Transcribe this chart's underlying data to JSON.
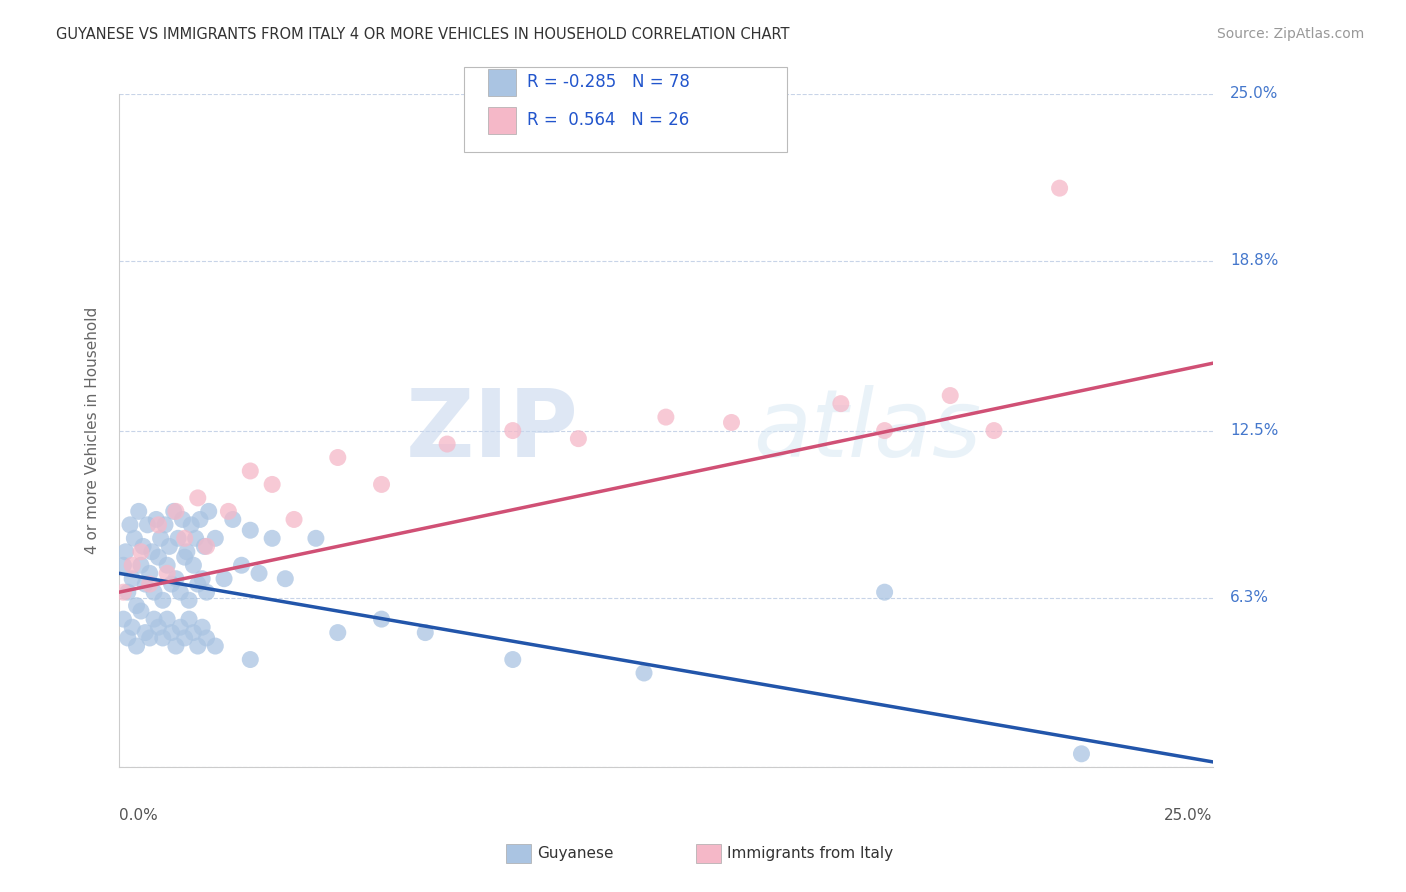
{
  "title": "GUYANESE VS IMMIGRANTS FROM ITALY 4 OR MORE VEHICLES IN HOUSEHOLD CORRELATION CHART",
  "source": "Source: ZipAtlas.com",
  "ylabel": "4 or more Vehicles in Household",
  "yticks": [
    0.0,
    6.3,
    12.5,
    18.8,
    25.0
  ],
  "ytick_labels": [
    "",
    "6.3%",
    "12.5%",
    "18.8%",
    "25.0%"
  ],
  "xlim": [
    0.0,
    25.0
  ],
  "ylim": [
    0.0,
    25.0
  ],
  "watermark_zip": "ZIP",
  "watermark_atlas": "atlas",
  "legend_blue_label": "Guyanese",
  "legend_pink_label": "Immigrants from Italy",
  "R_blue": -0.285,
  "N_blue": 78,
  "R_pink": 0.564,
  "N_pink": 26,
  "blue_color": "#aac4e2",
  "pink_color": "#f5b8c8",
  "blue_line_color": "#2255aa",
  "pink_line_color": "#d05075",
  "background_color": "#ffffff",
  "grid_color": "#c8d4e8",
  "blue_line_start_y": 7.2,
  "blue_line_end_y": 0.2,
  "pink_line_start_y": 6.5,
  "pink_line_end_y": 15.0,
  "blue_dots": [
    [
      0.1,
      7.5
    ],
    [
      0.15,
      8.0
    ],
    [
      0.2,
      6.5
    ],
    [
      0.25,
      9.0
    ],
    [
      0.3,
      7.0
    ],
    [
      0.35,
      8.5
    ],
    [
      0.4,
      6.0
    ],
    [
      0.45,
      9.5
    ],
    [
      0.5,
      7.5
    ],
    [
      0.55,
      8.2
    ],
    [
      0.6,
      6.8
    ],
    [
      0.65,
      9.0
    ],
    [
      0.7,
      7.2
    ],
    [
      0.75,
      8.0
    ],
    [
      0.8,
      6.5
    ],
    [
      0.85,
      9.2
    ],
    [
      0.9,
      7.8
    ],
    [
      0.95,
      8.5
    ],
    [
      1.0,
      6.2
    ],
    [
      1.05,
      9.0
    ],
    [
      1.1,
      7.5
    ],
    [
      1.15,
      8.2
    ],
    [
      1.2,
      6.8
    ],
    [
      1.25,
      9.5
    ],
    [
      1.3,
      7.0
    ],
    [
      1.35,
      8.5
    ],
    [
      1.4,
      6.5
    ],
    [
      1.45,
      9.2
    ],
    [
      1.5,
      7.8
    ],
    [
      1.55,
      8.0
    ],
    [
      1.6,
      6.2
    ],
    [
      1.65,
      9.0
    ],
    [
      1.7,
      7.5
    ],
    [
      1.75,
      8.5
    ],
    [
      1.8,
      6.8
    ],
    [
      1.85,
      9.2
    ],
    [
      1.9,
      7.0
    ],
    [
      1.95,
      8.2
    ],
    [
      2.0,
      6.5
    ],
    [
      2.05,
      9.5
    ],
    [
      0.1,
      5.5
    ],
    [
      0.2,
      4.8
    ],
    [
      0.3,
      5.2
    ],
    [
      0.4,
      4.5
    ],
    [
      0.5,
      5.8
    ],
    [
      0.6,
      5.0
    ],
    [
      0.7,
      4.8
    ],
    [
      0.8,
      5.5
    ],
    [
      0.9,
      5.2
    ],
    [
      1.0,
      4.8
    ],
    [
      1.1,
      5.5
    ],
    [
      1.2,
      5.0
    ],
    [
      1.3,
      4.5
    ],
    [
      1.4,
      5.2
    ],
    [
      1.5,
      4.8
    ],
    [
      1.6,
      5.5
    ],
    [
      1.7,
      5.0
    ],
    [
      1.8,
      4.5
    ],
    [
      1.9,
      5.2
    ],
    [
      2.0,
      4.8
    ],
    [
      2.2,
      8.5
    ],
    [
      2.4,
      7.0
    ],
    [
      2.6,
      9.2
    ],
    [
      2.8,
      7.5
    ],
    [
      3.0,
      8.8
    ],
    [
      3.2,
      7.2
    ],
    [
      3.5,
      8.5
    ],
    [
      3.8,
      7.0
    ],
    [
      4.5,
      8.5
    ],
    [
      5.0,
      5.0
    ],
    [
      6.0,
      5.5
    ],
    [
      7.0,
      5.0
    ],
    [
      9.0,
      4.0
    ],
    [
      12.0,
      3.5
    ],
    [
      17.5,
      6.5
    ],
    [
      22.0,
      0.5
    ],
    [
      2.2,
      4.5
    ],
    [
      3.0,
      4.0
    ]
  ],
  "pink_dots": [
    [
      0.1,
      6.5
    ],
    [
      0.3,
      7.5
    ],
    [
      0.5,
      8.0
    ],
    [
      0.7,
      6.8
    ],
    [
      0.9,
      9.0
    ],
    [
      1.1,
      7.2
    ],
    [
      1.3,
      9.5
    ],
    [
      1.5,
      8.5
    ],
    [
      1.8,
      10.0
    ],
    [
      2.0,
      8.2
    ],
    [
      2.5,
      9.5
    ],
    [
      3.0,
      11.0
    ],
    [
      3.5,
      10.5
    ],
    [
      4.0,
      9.2
    ],
    [
      5.0,
      11.5
    ],
    [
      6.0,
      10.5
    ],
    [
      7.5,
      12.0
    ],
    [
      9.0,
      12.5
    ],
    [
      10.5,
      12.2
    ],
    [
      12.5,
      13.0
    ],
    [
      14.0,
      12.8
    ],
    [
      16.5,
      13.5
    ],
    [
      19.0,
      13.8
    ],
    [
      21.5,
      21.5
    ],
    [
      17.5,
      12.5
    ],
    [
      20.0,
      12.5
    ]
  ]
}
